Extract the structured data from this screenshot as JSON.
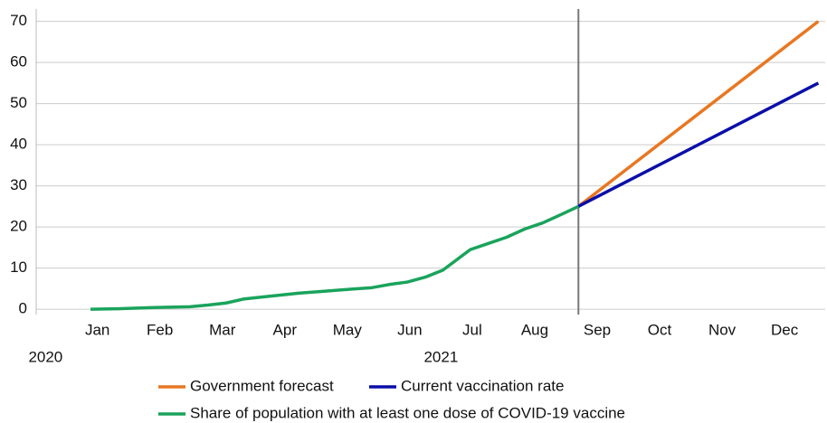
{
  "chart_data": {
    "type": "line",
    "xlim": [
      -0.48,
      12.15
    ],
    "xticks": [
      {
        "value": 0.5,
        "label": "Jan"
      },
      {
        "value": 1.5,
        "label": "Feb"
      },
      {
        "value": 2.5,
        "label": "Mar"
      },
      {
        "value": 3.5,
        "label": "Apr"
      },
      {
        "value": 4.5,
        "label": "May"
      },
      {
        "value": 5.5,
        "label": "Jun"
      },
      {
        "value": 6.5,
        "label": "Jul"
      },
      {
        "value": 7.5,
        "label": "Aug"
      },
      {
        "value": 8.5,
        "label": "Sep"
      },
      {
        "value": 9.5,
        "label": "Oct"
      },
      {
        "value": 10.5,
        "label": "Nov"
      },
      {
        "value": 11.5,
        "label": "Dec"
      }
    ],
    "annotations": [
      {
        "text": "2020",
        "x": -0.33
      },
      {
        "text": "2021",
        "x": 6.0
      }
    ],
    "vline": 8.2,
    "ylim": [
      -1.3,
      73
    ],
    "yticks": [
      0,
      10,
      20,
      30,
      40,
      50,
      60,
      70
    ],
    "grid": true,
    "series": [
      {
        "name": "Government forecast",
        "color": "#e87722",
        "x": [
          8.2,
          12.04
        ],
        "values": [
          25,
          70
        ]
      },
      {
        "name": "Current vaccination rate",
        "color": "#0a0fa8",
        "x": [
          8.2,
          12.04
        ],
        "values": [
          25,
          55
        ]
      },
      {
        "name": "Share of population with at least one dose of COVID-19 vaccine",
        "color": "#1aa35c",
        "x": [
          0.39,
          0.82,
          1.4,
          1.98,
          2.27,
          2.56,
          2.85,
          3.29,
          3.72,
          4.15,
          4.59,
          4.88,
          5.17,
          5.46,
          5.75,
          6.03,
          6.25,
          6.47,
          6.76,
          7.05,
          7.34,
          7.63,
          7.92,
          8.2
        ],
        "values": [
          0,
          0.1,
          0.4,
          0.6,
          1.0,
          1.5,
          2.5,
          3.2,
          3.9,
          4.4,
          4.9,
          5.2,
          6.0,
          6.6,
          7.8,
          9.5,
          12.0,
          14.5,
          16,
          17.5,
          19.5,
          21,
          23,
          25
        ]
      }
    ]
  }
}
